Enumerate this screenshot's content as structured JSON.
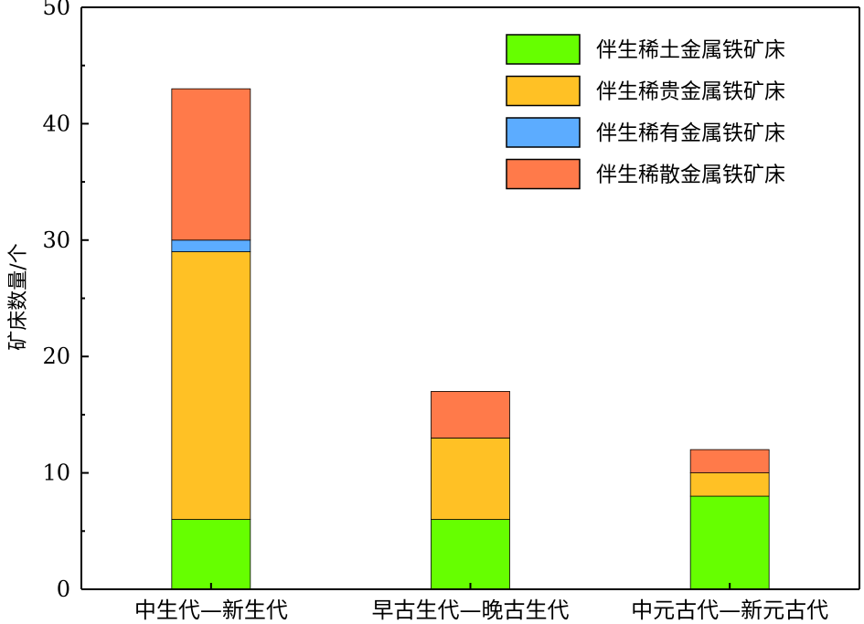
{
  "chart_data": {
    "type": "bar",
    "stacked": true,
    "title": "",
    "xlabel": "",
    "ylabel": "矿床数量/个",
    "ylim": [
      0,
      50
    ],
    "yticks": [
      0,
      10,
      20,
      30,
      40,
      50
    ],
    "categories": [
      "中生代—新生代",
      "早古生代—晚古生代",
      "中元古代—新元古代"
    ],
    "series": [
      {
        "name": "伴生稀土金属铁矿床",
        "color": "#66ff00",
        "values": [
          6,
          6,
          8
        ]
      },
      {
        "name": "伴生稀贵金属铁矿床",
        "color": "#ffc125",
        "values": [
          23,
          7,
          2
        ]
      },
      {
        "name": "伴生稀有金属铁矿床",
        "color": "#5cacff",
        "values": [
          1,
          0,
          0
        ]
      },
      {
        "name": "伴生稀散金属铁矿床",
        "color": "#ff7a4a",
        "values": [
          13,
          4,
          2
        ]
      }
    ],
    "legend": "top-right",
    "grid": false
  }
}
